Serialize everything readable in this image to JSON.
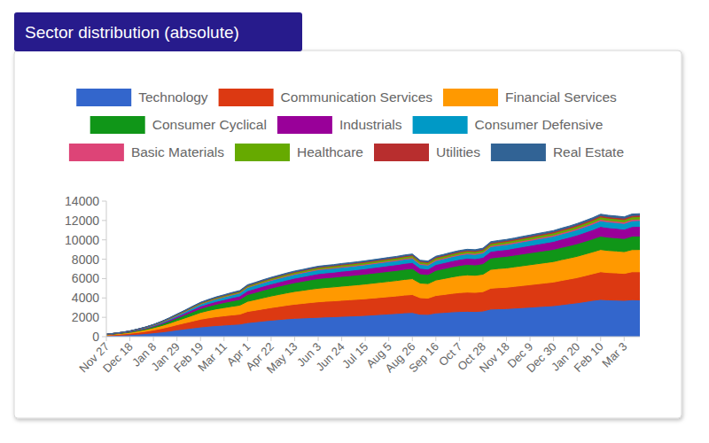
{
  "chart_data": {
    "type": "area",
    "title": "Sector distribution (absolute)",
    "stacked": true,
    "grid": false,
    "legend": "top",
    "ylim": [
      0,
      14000
    ],
    "yticks": [
      0,
      2000,
      4000,
      6000,
      8000,
      10000,
      12000,
      14000
    ],
    "categories": [
      "Nov 27",
      null,
      null,
      "Dec 18",
      null,
      null,
      "Jan 8",
      null,
      null,
      "Jan 29",
      null,
      null,
      "Feb 19",
      null,
      null,
      "Mar 11",
      null,
      null,
      "Apr 1",
      null,
      null,
      "Apr 22",
      null,
      null,
      "May 13",
      null,
      null,
      "Jun 3",
      null,
      null,
      "Jun 24",
      null,
      null,
      "Jul 15",
      null,
      null,
      "Aug 5",
      null,
      null,
      "Aug 26",
      null,
      null,
      "Sep 16",
      null,
      null,
      "Oct 7",
      null,
      null,
      "Oct 28",
      null,
      null,
      "Nov 18",
      null,
      null,
      "Dec 9",
      null,
      null,
      "Dec 30",
      null,
      null,
      "Jan 20",
      null,
      null,
      "Feb 10",
      null,
      null,
      "Mar 3",
      null,
      null
    ],
    "series": [
      {
        "name": "Technology",
        "color": "#3366cc",
        "values": [
          100,
          130,
          160,
          200,
          260,
          320,
          400,
          480,
          580,
          700,
          800,
          900,
          1000,
          1080,
          1150,
          1200,
          1250,
          1300,
          1450,
          1530,
          1620,
          1700,
          1770,
          1840,
          1900,
          1930,
          1970,
          2000,
          2040,
          2060,
          2100,
          2130,
          2160,
          2200,
          2250,
          2300,
          2350,
          2400,
          2460,
          2500,
          2320,
          2300,
          2450,
          2500,
          2560,
          2600,
          2620,
          2600,
          2650,
          2850,
          2880,
          2900,
          2950,
          3000,
          3050,
          3100,
          3150,
          3200,
          3300,
          3400,
          3500,
          3620,
          3750,
          3850,
          3800,
          3780,
          3750,
          3820,
          3800
        ]
      },
      {
        "name": "Communication Services",
        "color": "#dc3912",
        "values": [
          60,
          80,
          110,
          140,
          180,
          230,
          290,
          360,
          440,
          530,
          620,
          710,
          800,
          860,
          910,
          950,
          990,
          1020,
          1150,
          1200,
          1250,
          1300,
          1350,
          1400,
          1450,
          1500,
          1550,
          1600,
          1620,
          1640,
          1660,
          1680,
          1700,
          1720,
          1740,
          1760,
          1780,
          1800,
          1830,
          1850,
          1700,
          1680,
          1800,
          1850,
          1900,
          1950,
          1980,
          1970,
          2000,
          2150,
          2180,
          2200,
          2240,
          2280,
          2320,
          2360,
          2400,
          2440,
          2500,
          2550,
          2600,
          2680,
          2750,
          2850,
          2820,
          2800,
          2780,
          2880,
          2900
        ]
      },
      {
        "name": "Financial Services",
        "color": "#ff9900",
        "values": [
          40,
          60,
          80,
          100,
          140,
          180,
          230,
          290,
          360,
          430,
          510,
          600,
          700,
          760,
          810,
          850,
          890,
          930,
          1050,
          1100,
          1150,
          1200,
          1240,
          1280,
          1320,
          1350,
          1380,
          1400,
          1420,
          1440,
          1460,
          1480,
          1500,
          1520,
          1540,
          1560,
          1580,
          1600,
          1620,
          1640,
          1520,
          1500,
          1600,
          1650,
          1700,
          1750,
          1780,
          1770,
          1800,
          1950,
          1980,
          2000,
          2020,
          2040,
          2060,
          2080,
          2100,
          2120,
          2150,
          2170,
          2200,
          2230,
          2260,
          2300,
          2280,
          2270,
          2250,
          2290,
          2300
        ]
      },
      {
        "name": "Consumer Cyclical",
        "color": "#109618",
        "values": [
          20,
          30,
          40,
          60,
          80,
          100,
          130,
          170,
          210,
          260,
          310,
          360,
          400,
          440,
          480,
          520,
          560,
          600,
          700,
          740,
          780,
          820,
          850,
          880,
          910,
          940,
          970,
          1000,
          1000,
          1000,
          1010,
          1010,
          1020,
          1020,
          1030,
          1030,
          1040,
          1040,
          1050,
          1050,
          950,
          940,
          1000,
          1020,
          1040,
          1060,
          1080,
          1070,
          1090,
          1170,
          1180,
          1200,
          1210,
          1220,
          1230,
          1240,
          1250,
          1260,
          1270,
          1280,
          1300,
          1320,
          1340,
          1380,
          1370,
          1360,
          1350,
          1390,
          1400
        ]
      },
      {
        "name": "Industrials",
        "color": "#990099",
        "values": [
          10,
          15,
          20,
          30,
          40,
          55,
          70,
          90,
          120,
          150,
          180,
          220,
          250,
          270,
          290,
          310,
          330,
          350,
          390,
          410,
          420,
          430,
          440,
          450,
          460,
          470,
          480,
          500,
          510,
          520,
          530,
          540,
          550,
          560,
          570,
          580,
          590,
          600,
          610,
          620,
          570,
          560,
          600,
          610,
          620,
          630,
          640,
          640,
          650,
          690,
          700,
          700,
          720,
          740,
          760,
          780,
          800,
          820,
          850,
          870,
          900,
          930,
          960,
          1000,
          990,
          980,
          970,
          990,
          1000
        ]
      },
      {
        "name": "Consumer Defensive",
        "color": "#0099c6",
        "values": [
          10,
          15,
          20,
          30,
          40,
          50,
          60,
          80,
          100,
          120,
          150,
          180,
          200,
          220,
          240,
          260,
          280,
          300,
          330,
          340,
          350,
          360,
          370,
          380,
          390,
          395,
          400,
          400,
          400,
          400,
          400,
          400,
          400,
          400,
          400,
          410,
          410,
          410,
          420,
          420,
          400,
          400,
          400,
          410,
          420,
          430,
          440,
          440,
          450,
          480,
          490,
          500,
          500,
          510,
          510,
          520,
          520,
          530,
          530,
          540,
          550,
          560,
          570,
          590,
          590,
          590,
          590,
          600,
          600
        ]
      },
      {
        "name": "Basic Materials",
        "color": "#dd4477",
        "values": [
          0,
          0,
          0,
          5,
          10,
          15,
          20,
          25,
          30,
          35,
          35,
          40,
          40,
          45,
          50,
          55,
          60,
          60,
          65,
          65,
          70,
          70,
          70,
          75,
          75,
          75,
          80,
          80,
          80,
          85,
          85,
          85,
          90,
          90,
          90,
          90,
          95,
          95,
          95,
          100,
          95,
          95,
          100,
          100,
          100,
          105,
          105,
          105,
          110,
          115,
          115,
          120,
          120,
          125,
          125,
          130,
          130,
          130,
          135,
          135,
          140,
          140,
          145,
          150,
          150,
          150,
          150,
          150,
          150
        ]
      },
      {
        "name": "Healthcare",
        "color": "#66aa00",
        "values": [
          10,
          10,
          15,
          15,
          20,
          25,
          30,
          40,
          50,
          60,
          65,
          70,
          80,
          85,
          90,
          95,
          100,
          105,
          115,
          120,
          125,
          130,
          135,
          140,
          140,
          145,
          145,
          150,
          150,
          155,
          155,
          160,
          160,
          165,
          165,
          170,
          170,
          175,
          175,
          180,
          170,
          170,
          180,
          180,
          185,
          185,
          190,
          190,
          190,
          195,
          200,
          200,
          205,
          205,
          210,
          210,
          215,
          215,
          220,
          225,
          230,
          235,
          240,
          245,
          245,
          245,
          245,
          250,
          250
        ]
      },
      {
        "name": "Utilities",
        "color": "#b82e2e",
        "values": [
          0,
          0,
          5,
          5,
          5,
          10,
          10,
          15,
          15,
          20,
          20,
          25,
          30,
          30,
          35,
          35,
          40,
          40,
          45,
          45,
          50,
          50,
          55,
          55,
          60,
          60,
          60,
          65,
          65,
          65,
          70,
          70,
          70,
          75,
          75,
          75,
          80,
          80,
          80,
          85,
          80,
          80,
          85,
          85,
          90,
          90,
          90,
          95,
          95,
          100,
          100,
          105,
          105,
          110,
          110,
          115,
          115,
          120,
          120,
          125,
          125,
          130,
          135,
          140,
          140,
          140,
          145,
          145,
          150
        ]
      },
      {
        "name": "Real Estate",
        "color": "#316395",
        "values": [
          10,
          10,
          10,
          15,
          15,
          20,
          20,
          25,
          30,
          35,
          40,
          45,
          50,
          50,
          55,
          55,
          60,
          60,
          65,
          65,
          70,
          70,
          70,
          75,
          75,
          75,
          80,
          80,
          80,
          80,
          85,
          85,
          85,
          85,
          90,
          90,
          90,
          90,
          95,
          95,
          90,
          90,
          95,
          95,
          100,
          100,
          100,
          100,
          105,
          110,
          110,
          115,
          115,
          120,
          120,
          120,
          125,
          125,
          130,
          130,
          135,
          135,
          140,
          145,
          145,
          145,
          145,
          150,
          150
        ]
      }
    ]
  }
}
